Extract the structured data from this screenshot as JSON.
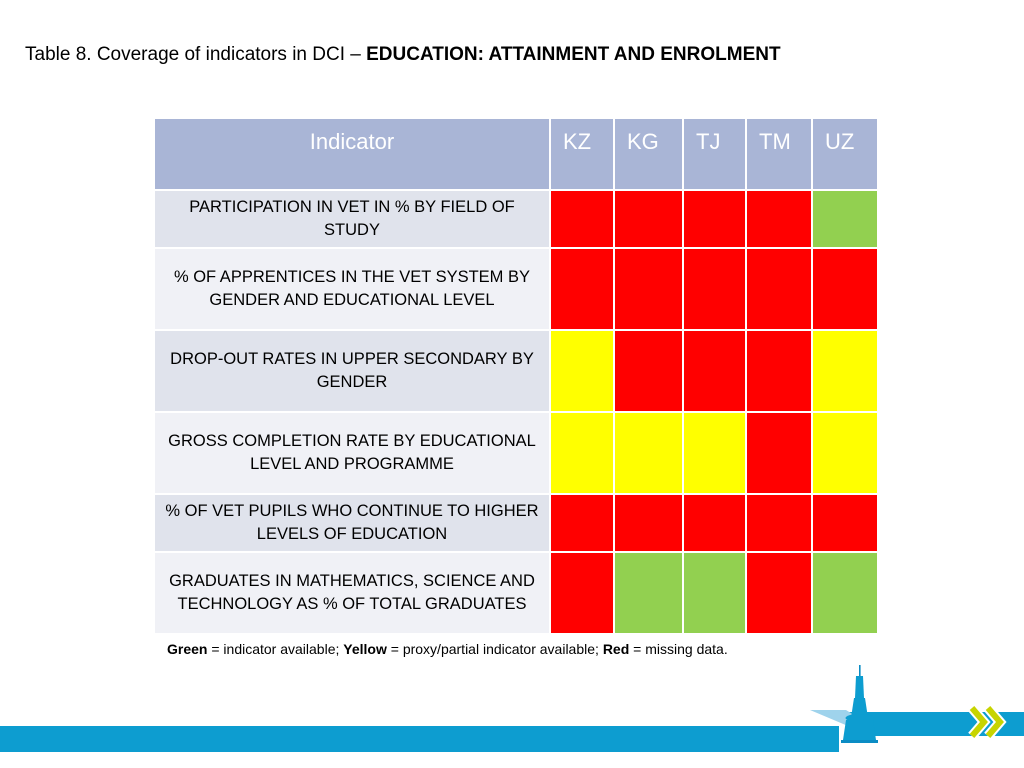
{
  "title": {
    "prefix": "Table 8. Coverage of indicators in DCI –",
    "emphasis": "EDUCATION: ATTAINMENT AND ENROLMENT"
  },
  "table": {
    "header": {
      "indicator": "Indicator",
      "countries": [
        "KZ",
        "KG",
        "TJ",
        "TM",
        "UZ"
      ]
    },
    "rows": [
      {
        "label": "PARTICIPATION IN VET IN % BY FIELD OF STUDY",
        "status": [
          "red",
          "red",
          "red",
          "red",
          "green"
        ]
      },
      {
        "label": "% OF APPRENTICES IN THE VET SYSTEM BY GENDER AND EDUCATIONAL LEVEL",
        "status": [
          "red",
          "red",
          "red",
          "red",
          "red"
        ]
      },
      {
        "label": "DROP-OUT RATES IN UPPER SECONDARY BY GENDER",
        "status": [
          "yellow",
          "red",
          "red",
          "red",
          "yellow"
        ]
      },
      {
        "label": "GROSS COMPLETION RATE BY EDUCATIONAL LEVEL AND PROGRAMME",
        "status": [
          "yellow",
          "yellow",
          "yellow",
          "red",
          "yellow"
        ]
      },
      {
        "label": "% OF VET PUPILS WHO CONTINUE TO HIGHER LEVELS OF EDUCATION",
        "status": [
          "red",
          "red",
          "red",
          "red",
          "red"
        ]
      },
      {
        "label": "GRADUATES IN MATHEMATICS, SCIENCE AND TECHNOLOGY AS % OF TOTAL GRADUATES",
        "status": [
          "red",
          "green",
          "green",
          "red",
          "green"
        ]
      }
    ]
  },
  "colors": {
    "red": "#ff0000",
    "yellow": "#ffff00",
    "green": "#92d050",
    "header": "#a9b5d6",
    "footer": "#0d9dd0"
  },
  "legend": {
    "green_label": "Green",
    "green_text": "= indicator available;",
    "yellow_label": "Yellow",
    "yellow_text": "= proxy/partial indicator available;",
    "red_label": "Red",
    "red_text": "= missing data."
  },
  "icons": {
    "decoration": "tower-icon",
    "chevrons": "double-chevron-right-icon"
  }
}
